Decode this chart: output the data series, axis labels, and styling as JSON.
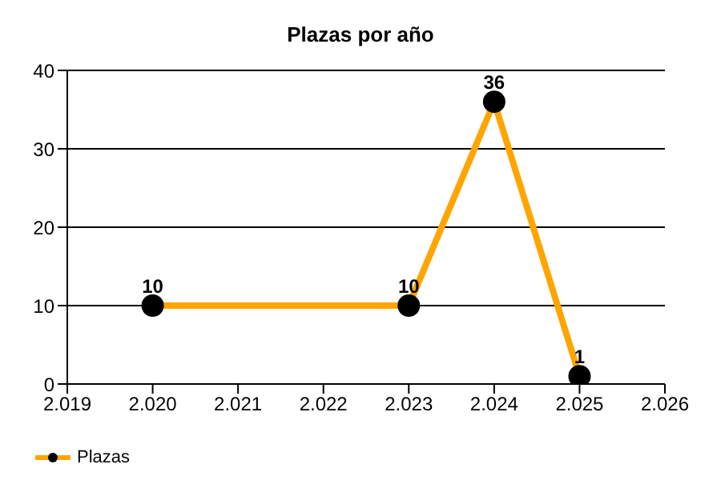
{
  "chart_data": {
    "type": "line",
    "title": "Plazas por año",
    "x": [
      2020,
      2023,
      2024,
      2025
    ],
    "series": [
      {
        "name": "Plazas",
        "color": "#ffa500",
        "values": [
          10,
          10,
          36,
          1
        ]
      }
    ],
    "xlim": [
      2019,
      2026
    ],
    "xticks": [
      {
        "value": 2019,
        "label": "2.019"
      },
      {
        "value": 2020,
        "label": "2.020"
      },
      {
        "value": 2021,
        "label": "2.021"
      },
      {
        "value": 2022,
        "label": "2.022"
      },
      {
        "value": 2023,
        "label": "2.023"
      },
      {
        "value": 2024,
        "label": "2.024"
      },
      {
        "value": 2025,
        "label": "2.025"
      },
      {
        "value": 2026,
        "label": "2.026"
      }
    ],
    "ylim": [
      0,
      40
    ],
    "yticks": [
      0,
      10,
      20,
      30,
      40
    ],
    "grid": "y",
    "legend": "bottom left",
    "marker": "circle",
    "line_style": "solid",
    "data_labels": true
  }
}
